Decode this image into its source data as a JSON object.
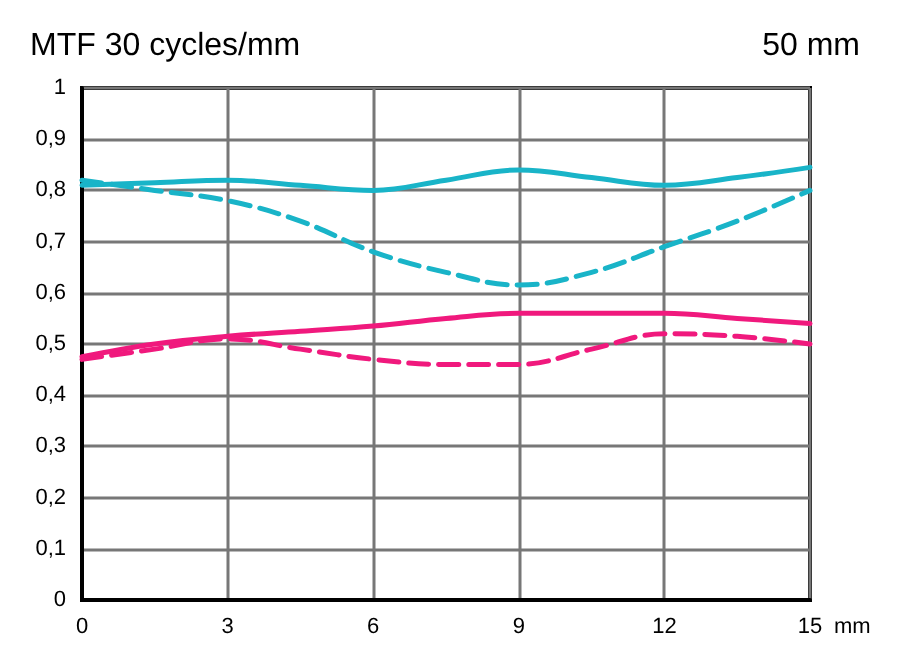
{
  "chart_data": {
    "type": "line",
    "title": "MTF 30 cycles/mm",
    "subtitle": "50 mm",
    "xlabel": "mm",
    "x": [
      0,
      1.5,
      3,
      4.5,
      6,
      7.5,
      9,
      10.5,
      12,
      13.5,
      15
    ],
    "series": [
      {
        "color": "#19b4c8",
        "line_style": "solid",
        "values": [
          0.81,
          0.815,
          0.82,
          0.81,
          0.8,
          0.82,
          0.84,
          0.825,
          0.81,
          0.825,
          0.845
        ]
      },
      {
        "color": "#19b4c8",
        "line_style": "dashed",
        "values": [
          0.82,
          0.8,
          0.78,
          0.74,
          0.68,
          0.64,
          0.615,
          0.64,
          0.69,
          0.74,
          0.8
        ]
      },
      {
        "color": "#f0197d",
        "line_style": "solid",
        "values": [
          0.475,
          0.5,
          0.515,
          0.525,
          0.535,
          0.55,
          0.56,
          0.56,
          0.56,
          0.55,
          0.54
        ]
      },
      {
        "color": "#f0197d",
        "line_style": "dashed",
        "values": [
          0.47,
          0.49,
          0.51,
          0.49,
          0.47,
          0.46,
          0.46,
          0.49,
          0.52,
          0.515,
          0.5
        ]
      }
    ],
    "xlim": [
      0,
      15
    ],
    "xticks": [
      0,
      3,
      6,
      9,
      12,
      15
    ],
    "ylim": [
      0,
      1
    ],
    "yticks": [
      0,
      {
        "value": 0.1,
        "label": "0,1"
      },
      {
        "value": 0.2,
        "label": "0,2"
      },
      {
        "value": 0.3,
        "label": "0,3"
      },
      {
        "value": 0.4,
        "label": "0,4"
      },
      {
        "value": 0.5,
        "label": "0,5"
      },
      {
        "value": 0.6,
        "label": "0,6"
      },
      {
        "value": 0.7,
        "label": "0,7"
      },
      {
        "value": 0.8,
        "label": "0,8"
      },
      {
        "value": 0.9,
        "label": "0,9"
      },
      1
    ],
    "grid": true,
    "marker": "none"
  }
}
